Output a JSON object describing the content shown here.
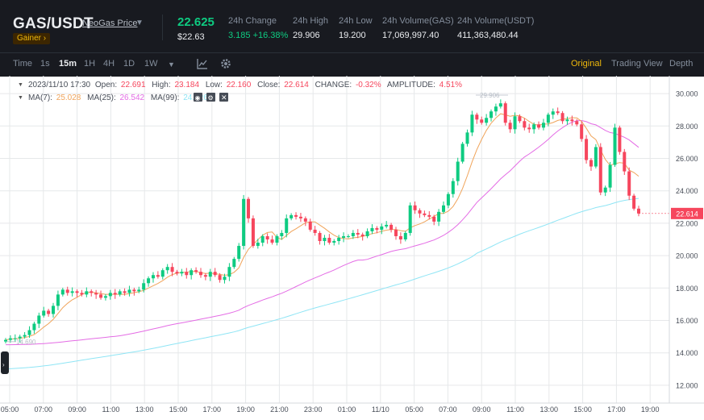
{
  "header": {
    "pair": "GAS/USDT",
    "price_label": "NeoGas Price",
    "badge": "Gainer ›",
    "last_price": "22.625",
    "usd_price": "$22.63",
    "stats": [
      {
        "label": "24h Change",
        "value": "3.185 +16.38%",
        "positive": true
      },
      {
        "label": "24h High",
        "value": "29.906"
      },
      {
        "label": "24h Low",
        "value": "19.200"
      },
      {
        "label": "24h Volume(GAS)",
        "value": "17,069,997.40"
      },
      {
        "label": "24h Volume(USDT)",
        "value": "411,363,480.44"
      }
    ]
  },
  "toolbar": {
    "timeframes": [
      "Time",
      "1s",
      "15m",
      "1H",
      "4H",
      "1D",
      "1W"
    ],
    "active_timeframe": "15m",
    "tool_icons": [
      "indicator-icon",
      "settings-icon"
    ],
    "views": [
      "Original",
      "Trading View",
      "Depth"
    ],
    "active_view": "Original"
  },
  "legend": {
    "ohlc": {
      "date": "2023/11/10 17:30",
      "open_label": "Open:",
      "open": "22.691",
      "high_label": "High:",
      "high": "23.184",
      "low_label": "Low:",
      "low": "22.160",
      "close_label": "Close:",
      "close": "22.614",
      "change_label": "CHANGE:",
      "change": "-0.32%",
      "amp_label": "AMPLITUDE:",
      "amplitude": "4.51%"
    },
    "ma": [
      {
        "label": "MA(7):",
        "value": "25.028",
        "color": "#f0a45a"
      },
      {
        "label": "MA(25):",
        "value": "26.542",
        "color": "#e46ce5"
      },
      {
        "label": "MA(99):",
        "value": "24.126",
        "color": "#8fe5f5"
      }
    ]
  },
  "colors": {
    "up": "#0ecb81",
    "down": "#f6465d",
    "ma7": "#f0a45a",
    "ma25": "#e46ce5",
    "ma99": "#8fe5f5"
  },
  "chart_data": {
    "type": "candlestick",
    "y_range": [
      11.0,
      31.0
    ],
    "y_ticks": [
      "12.000",
      "14.000",
      "16.000",
      "18.000",
      "20.000",
      "22.000",
      "24.000",
      "26.000",
      "28.000",
      "30.000"
    ],
    "x_ticks": [
      "05:00",
      "07:00",
      "09:00",
      "11:00",
      "13:00",
      "15:00",
      "17:00",
      "19:00",
      "21:00",
      "23:00",
      "01:00",
      "11/10",
      "05:00",
      "07:00",
      "09:00",
      "11:00",
      "13:00",
      "15:00",
      "17:00",
      "19:00"
    ],
    "current_price_label": "22.614",
    "high_marker": "29.906",
    "low_marker": "14.690",
    "candles_close": [
      14.8,
      14.9,
      14.9,
      15.0,
      15.1,
      15.4,
      15.8,
      16.3,
      16.6,
      16.4,
      16.9,
      17.6,
      17.9,
      17.7,
      17.8,
      17.7,
      17.6,
      17.8,
      17.7,
      17.6,
      17.4,
      17.5,
      17.7,
      17.6,
      17.8,
      17.7,
      17.9,
      17.8,
      17.9,
      18.3,
      18.6,
      18.8,
      18.7,
      19.1,
      19.3,
      19.0,
      18.9,
      19.0,
      18.8,
      19.1,
      19.0,
      18.8,
      18.7,
      19.0,
      18.8,
      18.5,
      18.7,
      19.3,
      19.8,
      20.6,
      23.5,
      22.3,
      20.6,
      20.8,
      21.2,
      21.0,
      20.8,
      21.2,
      21.4,
      22.3,
      22.5,
      22.4,
      22.3,
      22.1,
      21.6,
      21.4,
      20.9,
      21.1,
      20.8,
      20.9,
      21.1,
      21.2,
      21.2,
      21.4,
      21.3,
      21.2,
      21.5,
      21.7,
      21.6,
      21.8,
      21.9,
      21.6,
      21.2,
      21.0,
      21.4,
      23.1,
      22.8,
      22.6,
      22.5,
      22.4,
      22.1,
      22.7,
      23.1,
      23.8,
      24.6,
      25.8,
      26.9,
      27.6,
      28.7,
      28.4,
      28.2,
      28.5,
      28.9,
      29.2,
      29.4,
      28.2,
      27.8,
      28.6,
      28.3,
      27.9,
      27.8,
      28.1,
      27.9,
      28.2,
      28.7,
      28.9,
      28.8,
      28.3,
      28.4,
      28.3,
      28.1,
      27.2,
      25.9,
      25.5,
      26.7,
      23.9,
      24.2,
      25.6,
      27.9,
      26.4,
      25.2,
      23.7,
      22.9,
      22.6
    ]
  }
}
